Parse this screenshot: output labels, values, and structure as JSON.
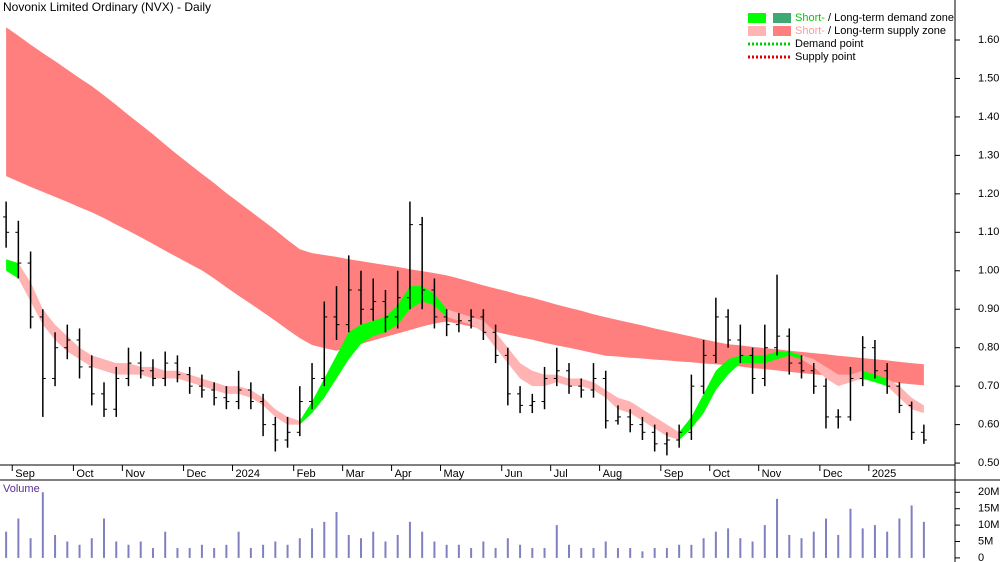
{
  "chart_data": {
    "type": "ohlc",
    "title": "Novonix Limited Ordinary (NVX) - Daily",
    "categories": [
      null,
      "Sep",
      null,
      null,
      null,
      null,
      "Oct",
      null,
      null,
      null,
      "Nov",
      null,
      null,
      null,
      null,
      "Dec",
      null,
      null,
      null,
      "2024",
      null,
      null,
      null,
      null,
      "Feb",
      null,
      null,
      null,
      "Mar",
      null,
      null,
      null,
      "Apr",
      null,
      null,
      null,
      "May",
      null,
      null,
      null,
      null,
      "Jun",
      null,
      null,
      null,
      "Jul",
      null,
      null,
      null,
      "Aug",
      null,
      null,
      null,
      null,
      "Sep",
      null,
      null,
      null,
      "Oct",
      null,
      null,
      null,
      "Nov",
      null,
      null,
      null,
      null,
      "Dec",
      null,
      null,
      null,
      "2025",
      null,
      null,
      null,
      null
    ],
    "open": [
      1.14,
      1.1,
      1.02,
      0.88,
      0.72,
      0.8,
      0.82,
      0.75,
      0.68,
      0.64,
      0.72,
      0.76,
      0.74,
      0.72,
      0.76,
      0.73,
      0.7,
      0.69,
      0.67,
      0.66,
      0.69,
      0.66,
      0.6,
      0.56,
      0.58,
      0.66,
      0.72,
      0.88,
      0.86,
      0.95,
      0.9,
      0.92,
      0.88,
      0.93,
      1.12,
      0.95,
      0.88,
      0.86,
      0.87,
      0.88,
      0.84,
      0.78,
      0.68,
      0.65,
      0.66,
      0.72,
      0.74,
      0.7,
      0.69,
      0.72,
      0.61,
      0.62,
      0.6,
      0.58,
      0.55,
      0.56,
      0.58,
      0.7,
      0.78,
      0.88,
      0.82,
      0.78,
      0.72,
      0.8,
      0.83,
      0.76,
      0.74,
      0.7,
      0.62,
      0.62,
      0.72,
      0.8,
      0.74,
      0.7,
      0.65,
      0.58
    ],
    "high": [
      1.18,
      1.13,
      1.05,
      0.9,
      0.84,
      0.86,
      0.85,
      0.78,
      0.71,
      0.75,
      0.8,
      0.79,
      0.77,
      0.79,
      0.78,
      0.75,
      0.73,
      0.71,
      0.7,
      0.74,
      0.71,
      0.68,
      0.62,
      0.62,
      0.7,
      0.76,
      0.92,
      0.96,
      1.04,
      1.0,
      0.98,
      0.95,
      1.0,
      1.18,
      1.14,
      0.98,
      0.9,
      0.89,
      0.9,
      0.9,
      0.86,
      0.8,
      0.7,
      0.68,
      0.75,
      0.8,
      0.76,
      0.72,
      0.76,
      0.74,
      0.65,
      0.64,
      0.62,
      0.6,
      0.58,
      0.6,
      0.73,
      0.82,
      0.93,
      0.9,
      0.86,
      0.8,
      0.86,
      0.99,
      0.85,
      0.78,
      0.76,
      0.72,
      0.64,
      0.75,
      0.83,
      0.82,
      0.76,
      0.71,
      0.66,
      0.6
    ],
    "low": [
      1.06,
      0.98,
      0.85,
      0.62,
      0.7,
      0.77,
      0.72,
      0.65,
      0.62,
      0.62,
      0.7,
      0.72,
      0.7,
      0.7,
      0.71,
      0.68,
      0.67,
      0.65,
      0.64,
      0.64,
      0.64,
      0.57,
      0.53,
      0.54,
      0.57,
      0.64,
      0.7,
      0.82,
      0.84,
      0.86,
      0.87,
      0.84,
      0.85,
      0.9,
      0.9,
      0.85,
      0.83,
      0.84,
      0.85,
      0.82,
      0.76,
      0.65,
      0.63,
      0.63,
      0.64,
      0.7,
      0.68,
      0.67,
      0.67,
      0.59,
      0.6,
      0.58,
      0.56,
      0.53,
      0.52,
      0.54,
      0.56,
      0.68,
      0.76,
      0.8,
      0.76,
      0.68,
      0.7,
      0.78,
      0.73,
      0.72,
      0.68,
      0.59,
      0.59,
      0.61,
      0.7,
      0.72,
      0.68,
      0.63,
      0.56,
      0.55
    ],
    "close": [
      1.1,
      1.02,
      0.88,
      0.72,
      0.8,
      0.82,
      0.75,
      0.68,
      0.64,
      0.72,
      0.76,
      0.74,
      0.72,
      0.76,
      0.73,
      0.7,
      0.69,
      0.67,
      0.66,
      0.69,
      0.66,
      0.6,
      0.56,
      0.58,
      0.66,
      0.72,
      0.88,
      0.86,
      0.95,
      0.9,
      0.92,
      0.88,
      0.93,
      1.12,
      0.95,
      0.88,
      0.86,
      0.87,
      0.88,
      0.84,
      0.78,
      0.68,
      0.65,
      0.66,
      0.72,
      0.74,
      0.7,
      0.69,
      0.72,
      0.61,
      0.62,
      0.6,
      0.58,
      0.55,
      0.56,
      0.58,
      0.7,
      0.78,
      0.88,
      0.82,
      0.78,
      0.72,
      0.8,
      0.83,
      0.76,
      0.74,
      0.7,
      0.62,
      0.62,
      0.72,
      0.8,
      0.74,
      0.7,
      0.65,
      0.58,
      0.56
    ],
    "color": "#000000",
    "zones": [
      {
        "color": "#ff7f7f",
        "upper": [
          1.633,
          1.611,
          1.588,
          1.566,
          1.545,
          1.523,
          1.501,
          1.48,
          1.456,
          1.431,
          1.405,
          1.38,
          1.355,
          1.328,
          1.302,
          1.277,
          1.252,
          1.228,
          1.202,
          1.178,
          1.154,
          1.13,
          1.106,
          1.08,
          1.056,
          1.046,
          1.041,
          1.036,
          1.03,
          1.025,
          1.02,
          1.015,
          1.01,
          1.004,
          0.999,
          0.994,
          0.988,
          0.98,
          0.971,
          0.962,
          0.954,
          0.946,
          0.937,
          0.93,
          0.921,
          0.912,
          0.904,
          0.896,
          0.887,
          0.879,
          0.872,
          0.865,
          0.858,
          0.85,
          0.843,
          0.836,
          0.829,
          0.822,
          0.815,
          0.809,
          0.806,
          0.802,
          0.799,
          0.796,
          0.792,
          0.789,
          0.786,
          0.783,
          0.779,
          0.776,
          0.773,
          0.77,
          0.767,
          0.763,
          0.76,
          0.757
        ],
        "lower": [
          1.246,
          1.232,
          1.218,
          1.205,
          1.192,
          1.179,
          1.165,
          1.152,
          1.137,
          1.12,
          1.104,
          1.087,
          1.07,
          1.052,
          1.035,
          1.018,
          1.001,
          0.98,
          0.957,
          0.935,
          0.914,
          0.892,
          0.87,
          0.847,
          0.825,
          0.807,
          0.799,
          0.792,
          0.802,
          0.81,
          0.819,
          0.828,
          0.837,
          0.846,
          0.855,
          0.863,
          0.868,
          0.862,
          0.855,
          0.848,
          0.841,
          0.834,
          0.827,
          0.821,
          0.813,
          0.806,
          0.8,
          0.793,
          0.786,
          0.779,
          0.777,
          0.774,
          0.772,
          0.769,
          0.767,
          0.764,
          0.762,
          0.759,
          0.757,
          0.754,
          0.751,
          0.747,
          0.744,
          0.741,
          0.737,
          0.734,
          0.731,
          0.728,
          0.724,
          0.721,
          0.718,
          0.715,
          0.712,
          0.708,
          0.705,
          0.702
        ]
      },
      {
        "color": "#ffb3b3",
        "upper": [
          null,
          1.02,
          0.97,
          0.9,
          0.86,
          0.83,
          0.8,
          0.78,
          0.77,
          0.76,
          0.76,
          0.75,
          0.75,
          0.74,
          0.74,
          0.73,
          0.72,
          0.71,
          0.7,
          0.7,
          0.69,
          0.67,
          0.64,
          0.62,
          0.61,
          null,
          null,
          null,
          null,
          null,
          null,
          null,
          null,
          null,
          null,
          null,
          0.9,
          0.89,
          0.88,
          0.87,
          0.84,
          0.8,
          0.76,
          0.74,
          0.73,
          0.73,
          0.72,
          0.72,
          0.71,
          0.69,
          0.67,
          0.66,
          0.64,
          0.62,
          0.6,
          0.58,
          null,
          null,
          null,
          null,
          null,
          null,
          null,
          null,
          null,
          0.78,
          0.77,
          0.75,
          0.73,
          0.73,
          0.74,
          null,
          0.72,
          0.7,
          0.67,
          0.65
        ],
        "lower": [
          null,
          0.98,
          0.92,
          0.86,
          0.82,
          0.79,
          0.77,
          0.75,
          0.74,
          0.73,
          0.73,
          0.73,
          0.72,
          0.72,
          0.72,
          0.71,
          0.7,
          0.69,
          0.68,
          0.68,
          0.67,
          0.65,
          0.62,
          0.6,
          0.6,
          null,
          null,
          null,
          null,
          null,
          null,
          null,
          null,
          null,
          null,
          null,
          0.88,
          0.87,
          0.86,
          0.84,
          0.8,
          0.76,
          0.72,
          0.7,
          0.7,
          0.71,
          0.7,
          0.7,
          0.69,
          0.67,
          0.64,
          0.63,
          0.61,
          0.59,
          0.57,
          0.56,
          null,
          null,
          null,
          null,
          null,
          null,
          null,
          null,
          null,
          0.77,
          0.75,
          0.72,
          0.7,
          0.71,
          0.72,
          null,
          0.7,
          0.67,
          0.64,
          0.63
        ]
      },
      {
        "color": "#00ff00",
        "upper": [
          1.03,
          1.02,
          null,
          null,
          null,
          null,
          null,
          null,
          null,
          null,
          null,
          null,
          null,
          null,
          null,
          null,
          null,
          null,
          null,
          null,
          null,
          null,
          null,
          null,
          0.61,
          0.66,
          0.72,
          0.78,
          0.84,
          0.86,
          0.87,
          0.88,
          0.91,
          0.96,
          0.96,
          0.94,
          0.9,
          null,
          null,
          null,
          null,
          null,
          null,
          null,
          null,
          null,
          null,
          null,
          null,
          null,
          null,
          null,
          null,
          null,
          null,
          0.58,
          0.62,
          0.68,
          0.74,
          0.77,
          0.78,
          0.78,
          0.78,
          0.79,
          0.79,
          0.78,
          null,
          null,
          null,
          null,
          0.74,
          0.73,
          0.72,
          null,
          null,
          null
        ],
        "lower": [
          1.0,
          0.98,
          null,
          null,
          null,
          null,
          null,
          null,
          null,
          null,
          null,
          null,
          null,
          null,
          null,
          null,
          null,
          null,
          null,
          null,
          null,
          null,
          null,
          null,
          0.6,
          0.63,
          0.67,
          0.72,
          0.77,
          0.81,
          0.83,
          0.84,
          0.86,
          0.9,
          0.92,
          0.91,
          0.88,
          null,
          null,
          null,
          null,
          null,
          null,
          null,
          null,
          null,
          null,
          null,
          null,
          null,
          null,
          null,
          null,
          null,
          null,
          0.56,
          0.59,
          0.63,
          0.69,
          0.73,
          0.76,
          0.76,
          0.76,
          0.77,
          0.78,
          0.77,
          null,
          null,
          null,
          null,
          0.72,
          0.71,
          0.7,
          null,
          null,
          null
        ]
      }
    ],
    "ylim": [
      0.495,
      1.704
    ],
    "yticks": [
      {
        "value": 0.5,
        "label": "0.50"
      },
      {
        "value": 0.6,
        "label": "0.60"
      },
      {
        "value": 0.7,
        "label": "0.70"
      },
      {
        "value": 0.8,
        "label": "0.80"
      },
      {
        "value": 0.9,
        "label": "0.90"
      },
      {
        "value": 1.0,
        "label": "1.00"
      },
      {
        "value": 1.1,
        "label": "1.10"
      },
      {
        "value": 1.2,
        "label": "1.20"
      },
      {
        "value": 1.3,
        "label": "1.30"
      },
      {
        "value": 1.4,
        "label": "1.40"
      },
      {
        "value": 1.5,
        "label": "1.50"
      },
      {
        "value": 1.6,
        "label": "1.60"
      }
    ],
    "legend": [
      {
        "short": "Short-",
        "label": "/ Long-term demand zone",
        "colors": [
          "#00ff00",
          "#3caa72"
        ],
        "short_color": "#00cc00"
      },
      {
        "short": "Short-",
        "label": "/ Long-term supply zone",
        "colors": [
          "#ffb3b3",
          "#ff7f7f"
        ],
        "short_color": "#ff9999"
      },
      {
        "label": "Demand point",
        "colors": [
          "#00cc00"
        ]
      },
      {
        "label": "Supply point",
        "colors": [
          "#dd0000"
        ]
      }
    ],
    "volume": {
      "name": "Volume",
      "color": "#8080c0",
      "values": [
        8000000,
        12000000,
        6000000,
        20000000,
        7000000,
        5000000,
        4000000,
        6000000,
        12000000,
        5000000,
        4000000,
        5000000,
        3000000,
        8000000,
        3000000,
        3000000,
        4000000,
        3000000,
        4000000,
        8000000,
        3000000,
        4000000,
        5000000,
        4000000,
        6000000,
        9000000,
        11000000,
        14000000,
        7000000,
        6000000,
        8000000,
        5000000,
        7000000,
        11000000,
        8000000,
        5000000,
        4000000,
        4000000,
        3000000,
        5000000,
        3000000,
        6000000,
        4000000,
        3000000,
        3000000,
        10000000,
        4000000,
        3000000,
        3000000,
        5000000,
        3000000,
        3000000,
        2000000,
        3000000,
        3000000,
        4000000,
        4000000,
        6000000,
        8000000,
        9000000,
        6000000,
        5000000,
        10000000,
        18000000,
        7000000,
        6000000,
        8000000,
        12000000,
        7000000,
        15000000,
        9000000,
        10000000,
        8000000,
        12000000,
        16000000,
        11000000
      ],
      "ylim": [
        -1250000,
        23750000
      ],
      "yticks": [
        0,
        {
          "value": 5000000,
          "label": "5M"
        },
        {
          "value": 10000000,
          "label": "10M"
        },
        {
          "value": 15000000,
          "label": "15M"
        },
        {
          "value": 20000000,
          "label": "20M"
        }
      ]
    }
  }
}
